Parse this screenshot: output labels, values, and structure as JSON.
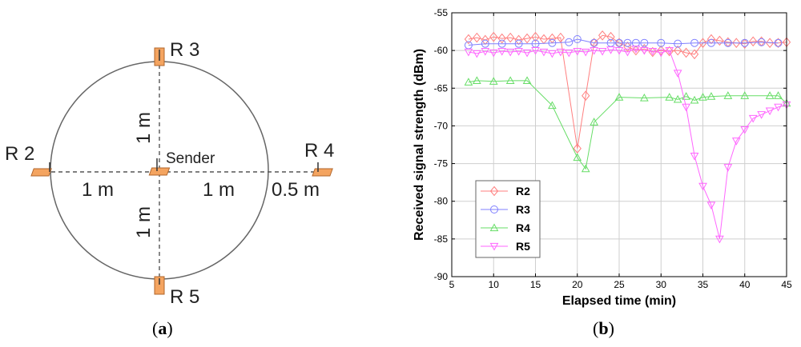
{
  "panel_a": {
    "caption": "a",
    "receivers": [
      {
        "id": "r3",
        "label": "R 3"
      },
      {
        "id": "r2",
        "label": "R 2"
      },
      {
        "id": "r4",
        "label": "R 4"
      },
      {
        "id": "r5",
        "label": "R 5"
      }
    ],
    "sender_label": "Sender",
    "distances": {
      "up": "1 m",
      "left": "1 m",
      "right": "1 m",
      "outer": "0.5 m",
      "down": "1 m"
    },
    "colors": {
      "device": "#f4a460",
      "device_edge": "#b0652a",
      "circle": "#666666"
    }
  },
  "panel_b": {
    "caption": "b"
  },
  "chart_data": {
    "type": "line",
    "title": "",
    "xlabel": "Elapsed time (min)",
    "ylabel": "Received signal strength (dBm)",
    "xlim": [
      5,
      45
    ],
    "ylim": [
      -90,
      -55
    ],
    "xticks": [
      5,
      10,
      15,
      20,
      25,
      30,
      35,
      40,
      45
    ],
    "yticks": [
      -55,
      -60,
      -65,
      -70,
      -75,
      -80,
      -85,
      -90
    ],
    "grid": true,
    "legend_position": "lower-left",
    "series": [
      {
        "name": "R2",
        "color": "#ff7f7f",
        "marker": "diamond",
        "x": [
          7,
          8,
          9,
          10,
          11,
          12,
          13,
          14,
          15,
          16,
          17,
          18,
          20,
          21,
          22,
          23,
          24,
          25,
          26,
          27,
          28,
          29,
          30,
          31,
          32,
          33,
          34,
          35,
          36,
          37,
          38,
          39,
          40,
          41,
          42,
          43,
          44,
          45
        ],
        "y": [
          -58.5,
          -58.3,
          -58.6,
          -58.2,
          -58.4,
          -58.3,
          -58.6,
          -58.4,
          -58.2,
          -58.5,
          -58.4,
          -58.3,
          -73,
          -66,
          -59,
          -58,
          -58.2,
          -59,
          -59.5,
          -60,
          -59.8,
          -60.2,
          -60,
          -60.1,
          -60,
          -60.3,
          -60.5,
          -59,
          -58.5,
          -58.7,
          -58.9,
          -59,
          -59.1,
          -58.8,
          -58.8,
          -59,
          -59,
          -58.9
        ]
      },
      {
        "name": "R3",
        "color": "#7f7fff",
        "marker": "circle",
        "x": [
          7,
          9,
          11,
          13,
          15,
          17,
          19,
          20,
          22,
          24,
          25,
          26,
          27,
          28,
          30,
          32,
          34,
          36,
          38,
          40,
          42,
          44
        ],
        "y": [
          -59.3,
          -59.1,
          -59.1,
          -59.1,
          -59.1,
          -59.0,
          -58.9,
          -58.5,
          -59.0,
          -59.0,
          -59.0,
          -59.0,
          -59.0,
          -59.0,
          -59.0,
          -59.1,
          -59.0,
          -59.0,
          -59.0,
          -59.0,
          -58.9,
          -59.0
        ]
      },
      {
        "name": "R4",
        "color": "#66dd66",
        "marker": "triangle-up",
        "x": [
          7,
          8,
          10,
          12,
          14,
          17,
          20,
          21,
          22,
          25,
          28,
          31,
          32,
          33,
          34,
          35,
          36,
          38,
          40,
          43,
          44,
          45
        ],
        "y": [
          -64.2,
          -64.0,
          -64.1,
          -64.0,
          -64.0,
          -67.3,
          -74.2,
          -75.7,
          -69.5,
          -66.2,
          -66.3,
          -66.2,
          -66.5,
          -66.1,
          -66.6,
          -66.2,
          -66.1,
          -66,
          -66,
          -66,
          -66,
          -67
        ]
      },
      {
        "name": "R5",
        "color": "#ff66ff",
        "marker": "triangle-down",
        "x": [
          7,
          8,
          9,
          10,
          11,
          12,
          13,
          14,
          15,
          16,
          17,
          18,
          19,
          20,
          21,
          22,
          23,
          24,
          25,
          26,
          27,
          28,
          29,
          30,
          31,
          32,
          33,
          34,
          35,
          36,
          37,
          38,
          39,
          40,
          41,
          42,
          43,
          44,
          45
        ],
        "y": [
          -60.2,
          -60.4,
          -60.1,
          -60.3,
          -60.1,
          -60.2,
          -60.1,
          -60.3,
          -60.0,
          -60.2,
          -60.4,
          -60.2,
          -60.3,
          -60.1,
          -60.2,
          -60.0,
          -60.1,
          -59.9,
          -60.0,
          -60.2,
          -59.8,
          -60.0,
          -60.1,
          -60.3,
          -60.0,
          -63,
          -67.5,
          -74,
          -78,
          -80.5,
          -85,
          -75.5,
          -72,
          -70.5,
          -69,
          -68.5,
          -68,
          -67.5,
          -67.2
        ]
      }
    ]
  }
}
